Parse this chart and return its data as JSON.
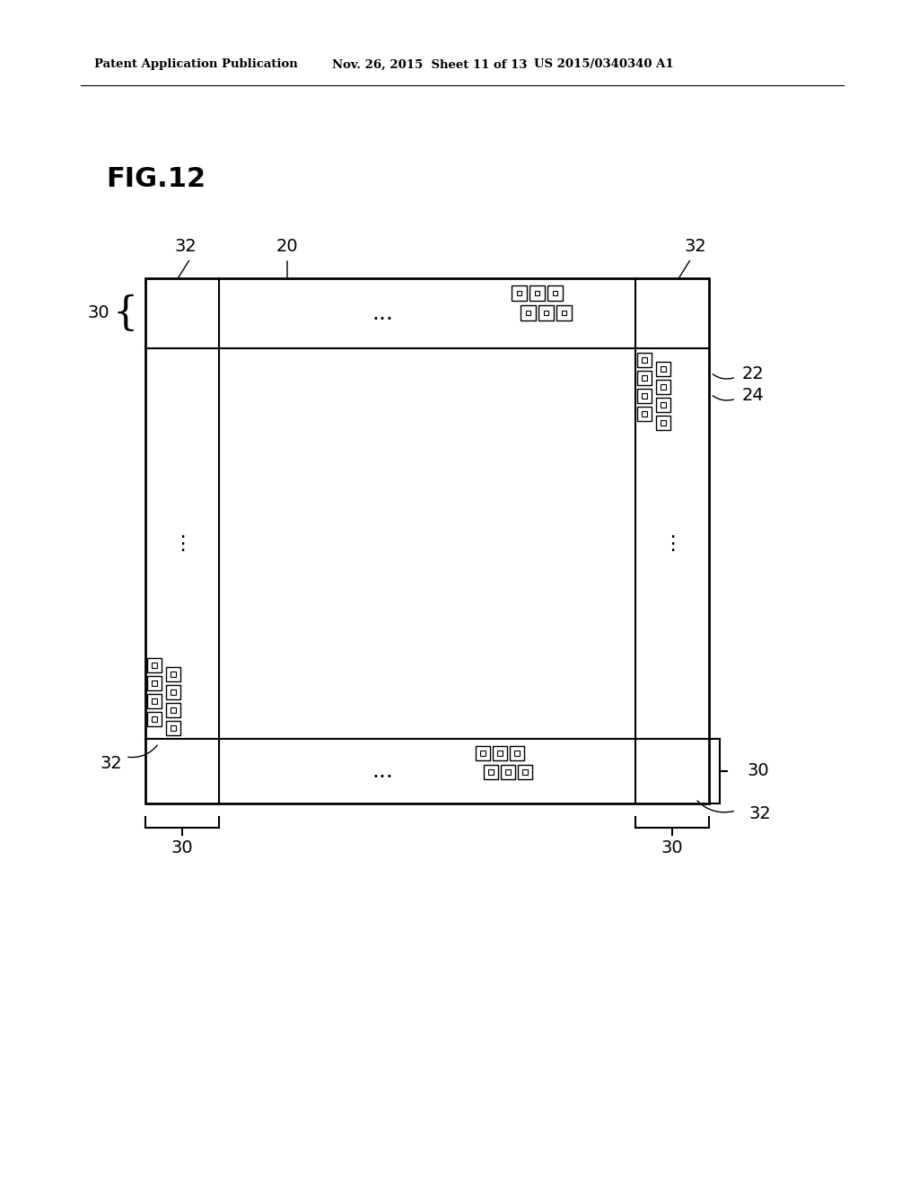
{
  "bg_color": "#ffffff",
  "header_text": "Patent Application Publication",
  "header_date": "Nov. 26, 2015  Sheet 11 of 13",
  "header_patent": "US 2015/0340340 A1",
  "fig_label": "FIG.12",
  "dots": "...",
  "vert_dots": "⋮"
}
